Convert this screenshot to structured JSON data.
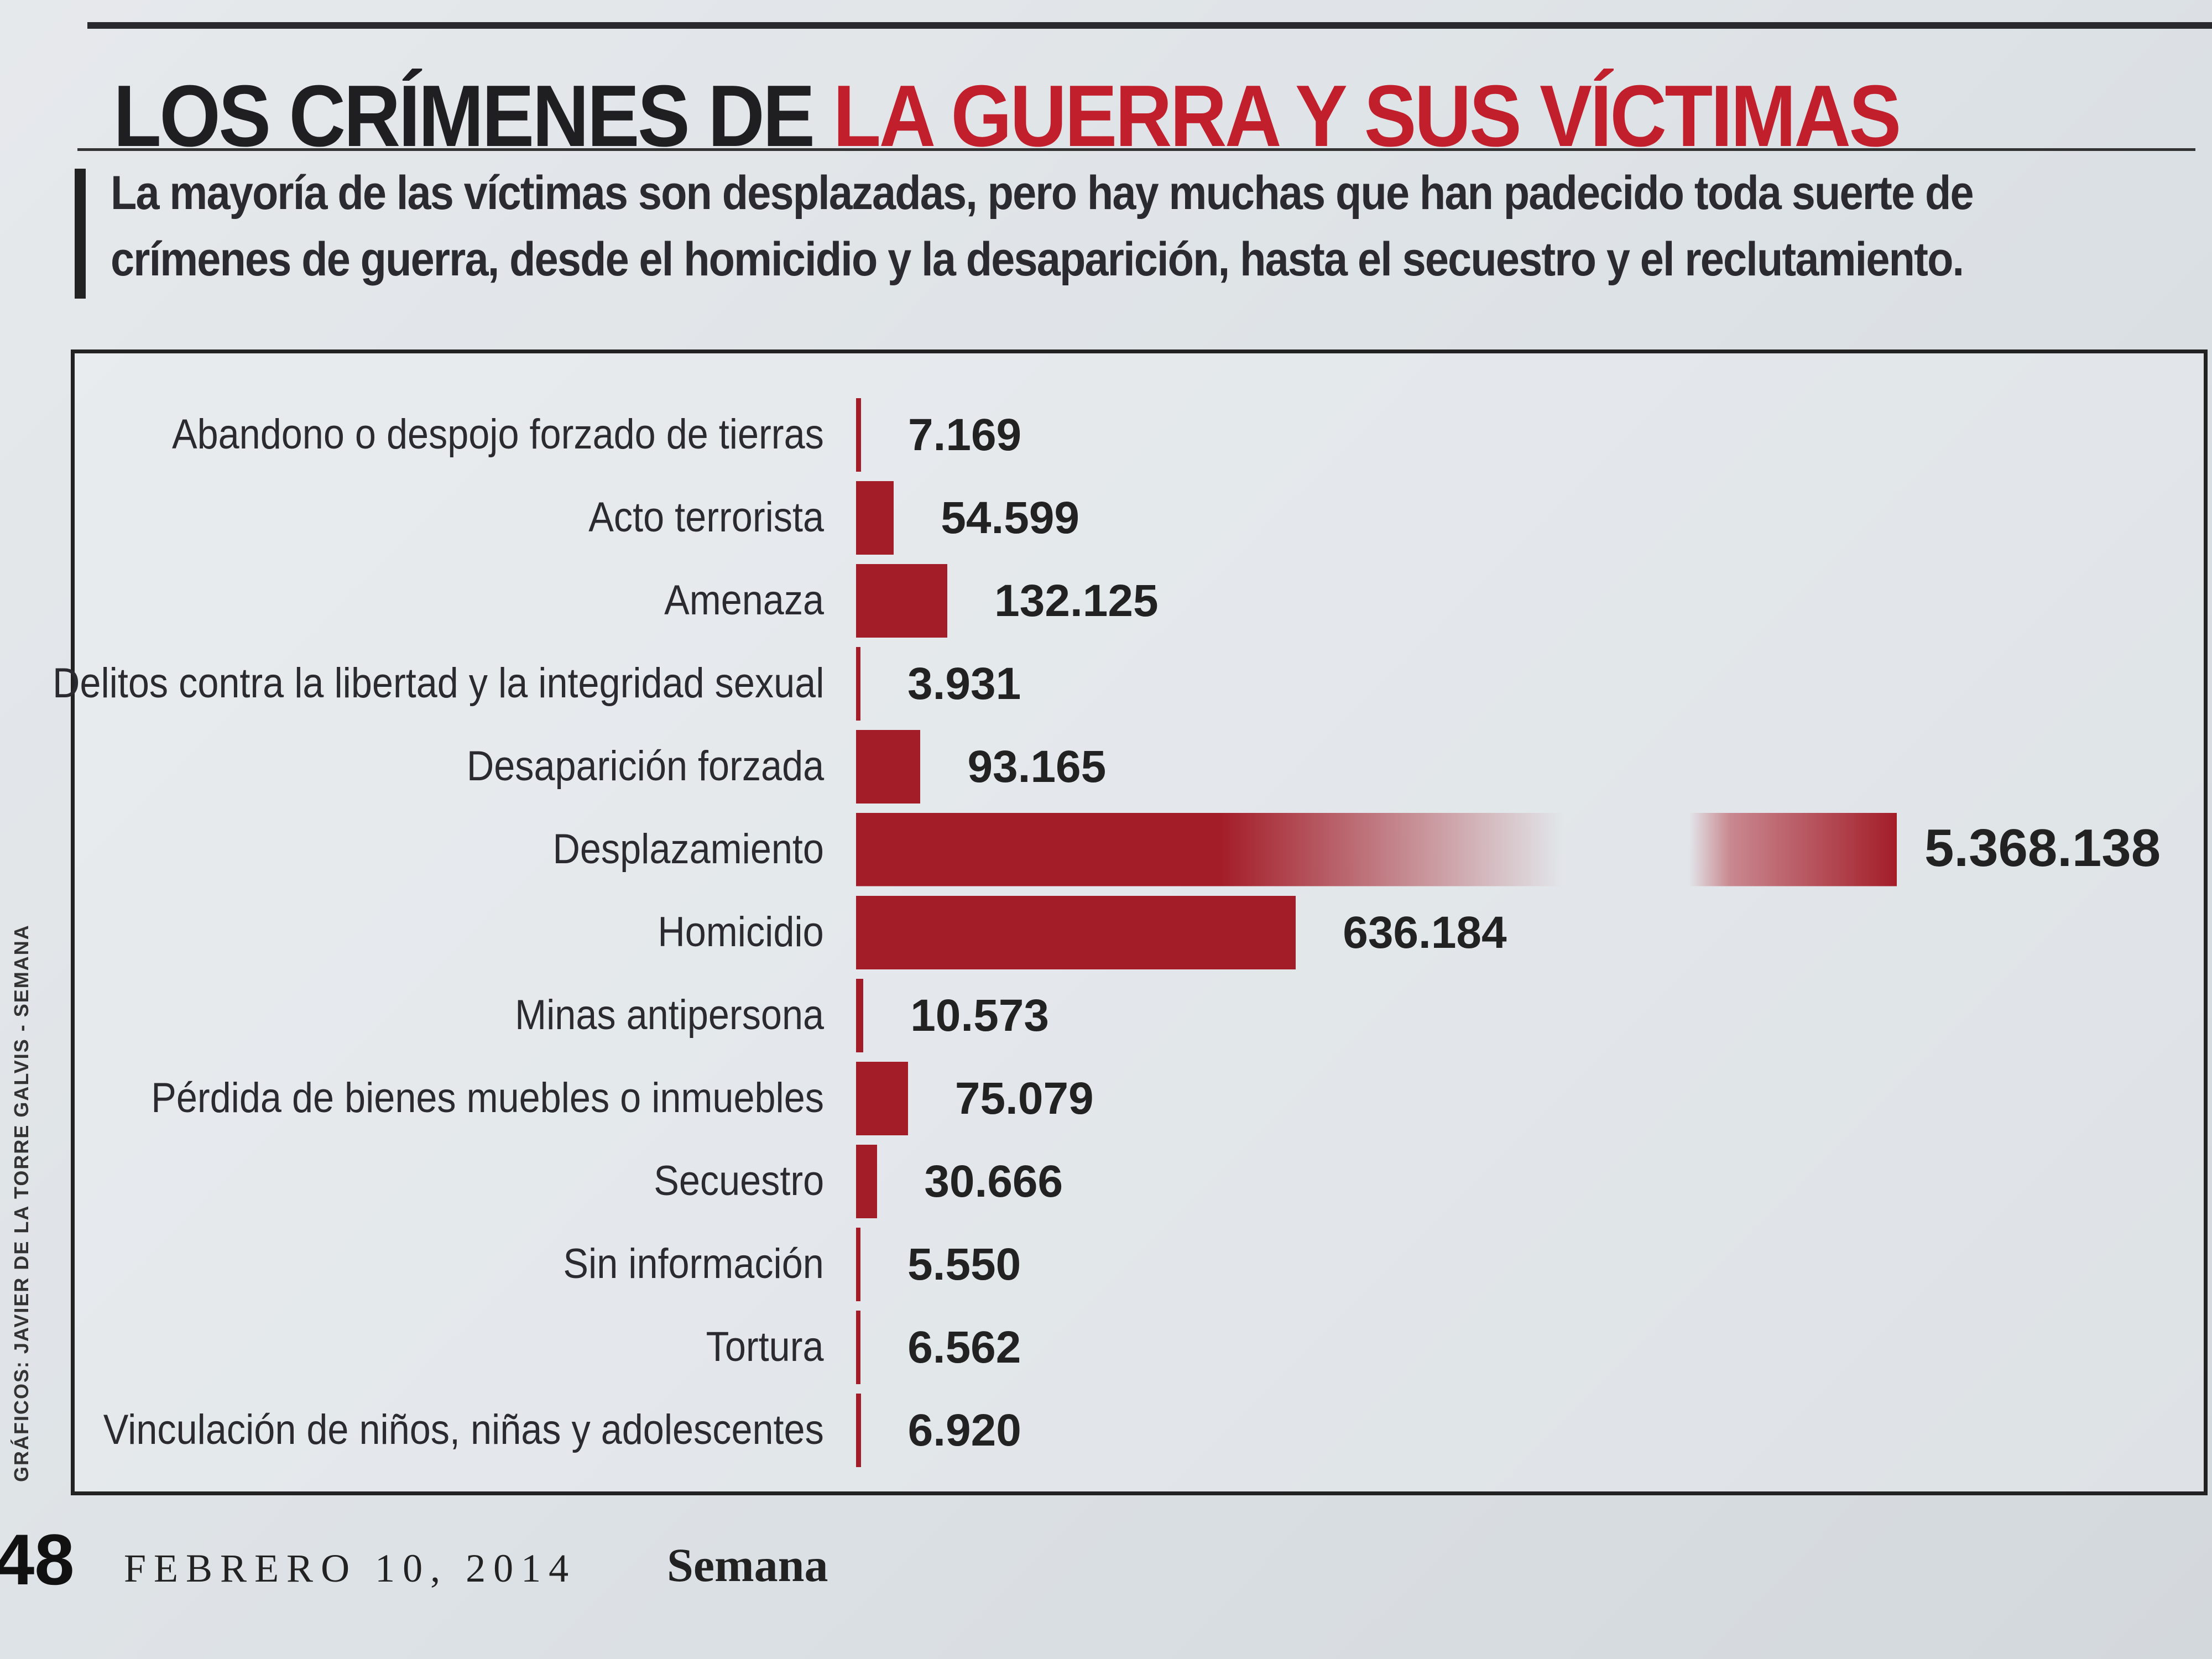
{
  "header": {
    "title_black": "LOS CRÍMENES DE ",
    "title_red": "LA GUERRA Y SUS VÍCTIMAS",
    "subtitle_line1": "La mayoría de las víctimas son desplazadas, pero hay muchas que han padecido toda suerte de",
    "subtitle_line2": "crímenes de guerra, desde el homicidio y la desaparición, hasta el secuestro y el reclutamiento."
  },
  "credit": "GRÁFICOS: JAVIER DE LA TORRE GALVIS - SEMANA",
  "footer": {
    "page": "48",
    "date": "FEBRERO 10, 2014",
    "magazine": "Semana"
  },
  "colors": {
    "bar": "#a31d28",
    "title_red": "#c11f2c"
  },
  "chart_data": {
    "type": "bar",
    "orientation": "horizontal",
    "title": "LOS CRÍMENES DE LA GUERRA Y SUS VÍCTIMAS",
    "categories": [
      "Abandono o despojo forzado de tierras",
      "Acto terrorista",
      "Amenaza",
      "Delitos contra la libertad y la integridad sexual",
      "Desaparición forzada",
      "Desplazamiento",
      "Homicidio",
      "Minas antipersona",
      "Pérdida de bienes muebles o inmuebles",
      "Secuestro",
      "Sin información",
      "Tortura",
      "Vinculación de niños, niñas y adolescentes"
    ],
    "values": [
      7169,
      54599,
      132125,
      3931,
      93165,
      5368138,
      636184,
      10573,
      75079,
      30666,
      5550,
      6562,
      6920
    ],
    "value_labels": [
      "7.169",
      "54.599",
      "132.125",
      "3.931",
      "93.165",
      "5.368.138",
      "636.184",
      "10.573",
      "75.079",
      "30.666",
      "5.550",
      "6.562",
      "6.920"
    ],
    "broken_axis_category": "Desplazamiento",
    "xlabel": "",
    "ylabel": ""
  }
}
